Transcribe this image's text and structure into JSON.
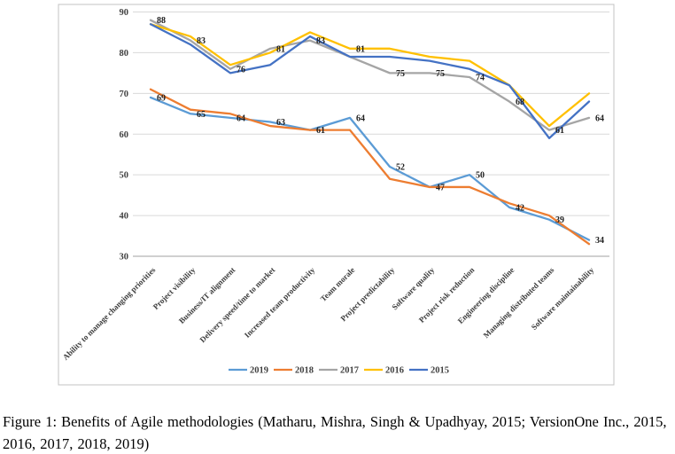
{
  "figure": {
    "caption": "Figure 1: Benefits of Agile methodologies (Matharu, Mishra, Singh & Upadhyay, 2015; VersionOne Inc., 2015, 2016, 2017, 2018, 2019)"
  },
  "chart_data": {
    "type": "line",
    "title": "",
    "xlabel": "",
    "ylabel": "",
    "categories": [
      "Ability to manage changing priorities",
      "Project visibility",
      "Business/IT alignment",
      "Delivery speed/time to market",
      "Increased team productivity",
      "Team morale",
      "Project predictability",
      "Software quality",
      "Project risk reduction",
      "Engineering discipline",
      "Managing distributed teams",
      "Software maintainability"
    ],
    "series": [
      {
        "name": "2019",
        "color": "#5B9BD5",
        "values": [
          69,
          65,
          64,
          63,
          61,
          64,
          52,
          47,
          50,
          42,
          39,
          34
        ]
      },
      {
        "name": "2018",
        "color": "#ED7D31",
        "values": [
          71,
          66,
          65,
          62,
          61,
          61,
          49,
          47,
          47,
          43,
          40,
          33
        ]
      },
      {
        "name": "2017",
        "color": "#A5A5A5",
        "values": [
          88,
          83,
          76,
          81,
          83,
          79,
          75,
          75,
          74,
          68,
          61,
          64
        ]
      },
      {
        "name": "2016",
        "color": "#FFC000",
        "values": [
          87,
          84,
          77,
          80,
          85,
          81,
          81,
          79,
          78,
          72,
          62,
          70
        ]
      },
      {
        "name": "2015",
        "color": "#4472C4",
        "values": [
          87,
          82,
          75,
          77,
          84,
          79,
          79,
          78,
          76,
          72,
          59,
          68
        ]
      }
    ],
    "point_labels": {
      "top_cluster": [
        88,
        83,
        76,
        81,
        83,
        81,
        75,
        75,
        74,
        68,
        61,
        64
      ],
      "bottom_cluster": [
        69,
        65,
        64,
        63,
        61,
        64,
        52,
        47,
        50,
        42,
        39,
        34
      ]
    },
    "y_axis": {
      "min": 30,
      "max": 90,
      "step": 10,
      "ticks": [
        90,
        80,
        70,
        60,
        50,
        40,
        30
      ]
    },
    "legend": {
      "entries": [
        "2019",
        "2018",
        "2017",
        "2016",
        "2015"
      ],
      "position": "bottom"
    },
    "grid": true
  },
  "style": {
    "grid_color": "#d9d9d9",
    "axis_line_color": "#a0a0a0",
    "frame_border_color": "#c3c3c3",
    "background": "#ffffff"
  }
}
